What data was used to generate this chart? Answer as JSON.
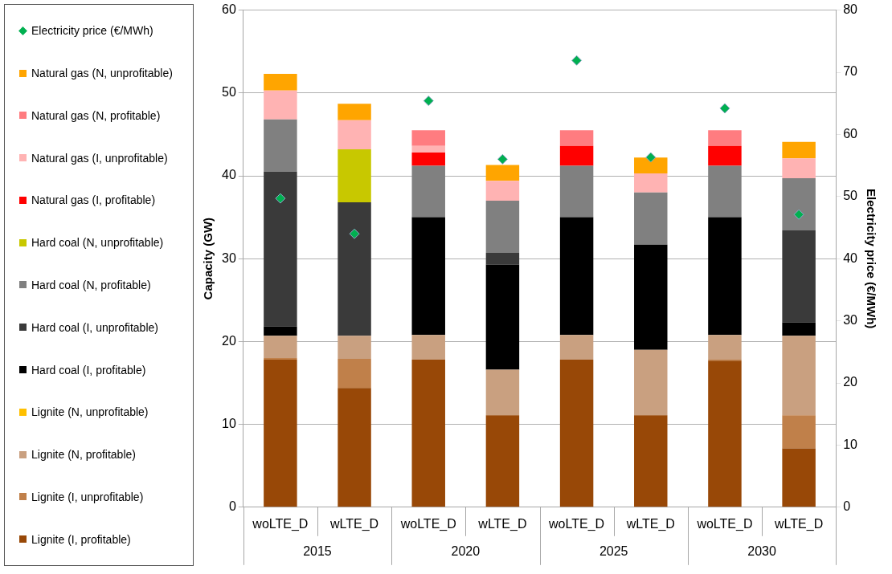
{
  "chart_data": {
    "type": "bar",
    "stacked": true,
    "ylabel": "Capacity (GW)",
    "y2label": "Electricity price (€/MWh)",
    "categories": [
      "woLTE_D",
      "wLTE_D",
      "woLTE_D",
      "wLTE_D",
      "woLTE_D",
      "wLTE_D",
      "woLTE_D",
      "wLTE_D"
    ],
    "annotations": [
      "2015",
      "2020",
      "2025",
      "2030"
    ],
    "ylim": [
      0,
      60
    ],
    "yticks": [
      0,
      10,
      20,
      30,
      40,
      50,
      60
    ],
    "y2lim": [
      0,
      80
    ],
    "y2ticks": [
      0,
      10,
      20,
      30,
      40,
      50,
      60,
      70,
      80
    ],
    "grid": "y",
    "legend": "left",
    "marker": "diamond",
    "series": [
      {
        "name": "Lignite (I, profitable)",
        "color": "#984807",
        "values": [
          17.8,
          14.4,
          17.8,
          11.1,
          17.8,
          11.1,
          17.7,
          7.1
        ]
      },
      {
        "name": "Lignite (I, unprofitable)",
        "color": "#c0804a",
        "values": [
          0.2,
          3.5,
          null,
          null,
          null,
          null,
          0.1,
          4.0
        ]
      },
      {
        "name": "Lignite (N, profitable)",
        "color": "#c9a080",
        "values": [
          2.7,
          2.8,
          3.0,
          5.5,
          3.0,
          7.9,
          3.0,
          9.6
        ]
      },
      {
        "name": "Lignite (N, unprofitable)",
        "color": "#ffc000",
        "values": [
          null,
          null,
          null,
          null,
          null,
          null,
          null,
          null
        ]
      },
      {
        "name": "Hard coal (I, profitable)",
        "color": "#000000",
        "values": [
          1.1,
          null,
          14.2,
          12.7,
          14.2,
          12.7,
          14.2,
          1.6
        ]
      },
      {
        "name": "Hard coal (I, unprofitable)",
        "color": "#3a3a3a",
        "values": [
          18.7,
          16.1,
          null,
          1.4,
          null,
          null,
          null,
          11.1
        ]
      },
      {
        "name": "Hard coal (N, profitable)",
        "color": "#808080",
        "values": [
          6.3,
          null,
          6.2,
          6.3,
          6.2,
          6.3,
          6.2,
          6.3
        ]
      },
      {
        "name": "Hard coal (N, unprofitable)",
        "color": "#c8c800",
        "values": [
          null,
          6.4,
          null,
          null,
          null,
          null,
          null,
          null
        ]
      },
      {
        "name": "Natural gas (I, profitable)",
        "color": "#ff0000",
        "values": [
          null,
          null,
          1.6,
          null,
          2.4,
          null,
          2.4,
          null
        ]
      },
      {
        "name": "Natural gas (I, unprofitable)",
        "color": "#ffb3b3",
        "values": [
          3.5,
          3.5,
          0.8,
          2.4,
          null,
          2.3,
          null,
          2.4
        ]
      },
      {
        "name": "Natural gas (N, profitable)",
        "color": "#ff7c80",
        "values": [
          null,
          null,
          1.9,
          null,
          1.9,
          null,
          1.9,
          null
        ]
      },
      {
        "name": "Natural gas (N, unprofitable)",
        "color": "#ffa500",
        "values": [
          2.0,
          2.0,
          null,
          1.9,
          null,
          1.9,
          null,
          2.0
        ]
      },
      {
        "name": "Electricity price (€/MWh)",
        "type": "scatter",
        "axis": "y2",
        "color": "#00b050",
        "values": [
          49.7,
          44.0,
          65.4,
          56.0,
          71.9,
          56.3,
          64.2,
          47.1
        ]
      }
    ]
  }
}
